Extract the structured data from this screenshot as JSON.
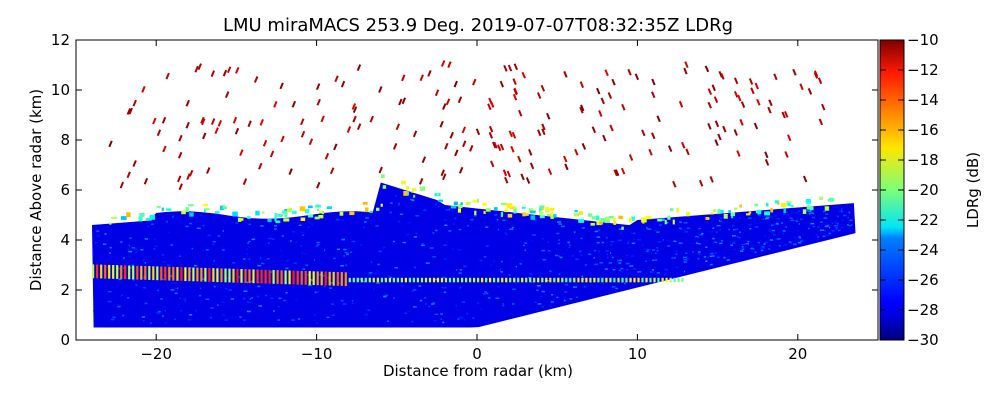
{
  "chart_data": {
    "type": "heatmap",
    "title": "LMU miraMACS 253.9 Deg. 2019-07-07T08:32:35Z  LDRg",
    "xlabel": "Distance from radar (km)",
    "ylabel": "Distance Above radar  (km)",
    "xlim": [
      -25,
      25
    ],
    "ylim": [
      0,
      12
    ],
    "xticks": [
      -20,
      -10,
      0,
      10,
      20
    ],
    "xtick_labels": [
      "−20",
      "−10",
      "0",
      "10",
      "20"
    ],
    "yticks": [
      0,
      2,
      4,
      6,
      8,
      10,
      12
    ],
    "ytick_labels": [
      "0",
      "2",
      "4",
      "6",
      "8",
      "10",
      "12"
    ],
    "colorbar": {
      "label": "LDRg (dB)",
      "colormap": "jet",
      "range": [
        -30,
        -10
      ],
      "ticks": [
        -30,
        -28,
        -26,
        -24,
        -22,
        -20,
        -18,
        -16,
        -14,
        -12,
        -10
      ],
      "tick_labels": [
        "−30",
        "−28",
        "−26",
        "−24",
        "−22",
        "−20",
        "−18",
        "−16",
        "−14",
        "−12",
        "−10"
      ]
    },
    "features": [
      {
        "name": "bright-band-layer",
        "altitude_km": 2.4,
        "ldr_db": -16,
        "x_range_km": [
          -24,
          13
        ]
      },
      {
        "name": "main-cloud-layer",
        "altitude_km": [
          0.5,
          5.5
        ],
        "ldr_db": -28,
        "x_range_km": [
          -24,
          24
        ]
      },
      {
        "name": "cloud-top-edge",
        "altitude_km": [
          5,
          7
        ],
        "ldr_db": -20
      },
      {
        "name": "sparse-upper-echoes",
        "altitude_km": [
          6,
          11
        ],
        "ldr_db": -10
      }
    ]
  }
}
